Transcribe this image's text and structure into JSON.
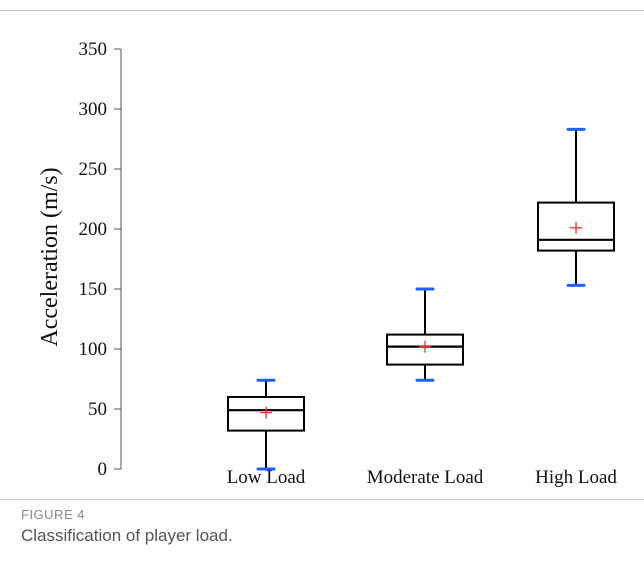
{
  "figure": {
    "label": "FIGURE 4",
    "caption": "Classification of player load."
  },
  "chart_data": {
    "type": "box",
    "title": "",
    "xlabel": "",
    "ylabel": "Acceleration (m/s)",
    "ylim": [
      0,
      350
    ],
    "yticks": [
      0,
      50,
      100,
      150,
      200,
      250,
      300,
      350
    ],
    "grid": false,
    "legend": "none",
    "categories": [
      "Low Load",
      "Moderate Load",
      "High Load"
    ],
    "boxes": [
      {
        "category": "Low Load",
        "min": 0,
        "q1": 32,
        "median": 49,
        "q3": 60,
        "max": 74,
        "mean": 47
      },
      {
        "category": "Moderate Load",
        "min": 74,
        "q1": 87,
        "median": 102,
        "q3": 112,
        "max": 150,
        "mean": 102
      },
      {
        "category": "High Load",
        "min": 153,
        "q1": 182,
        "median": 191,
        "q3": 222,
        "max": 283,
        "mean": 201
      }
    ],
    "colors": {
      "box": "#000000",
      "whisker_cap": "#1f5fff",
      "mean_marker": "#ff2a2a"
    }
  }
}
